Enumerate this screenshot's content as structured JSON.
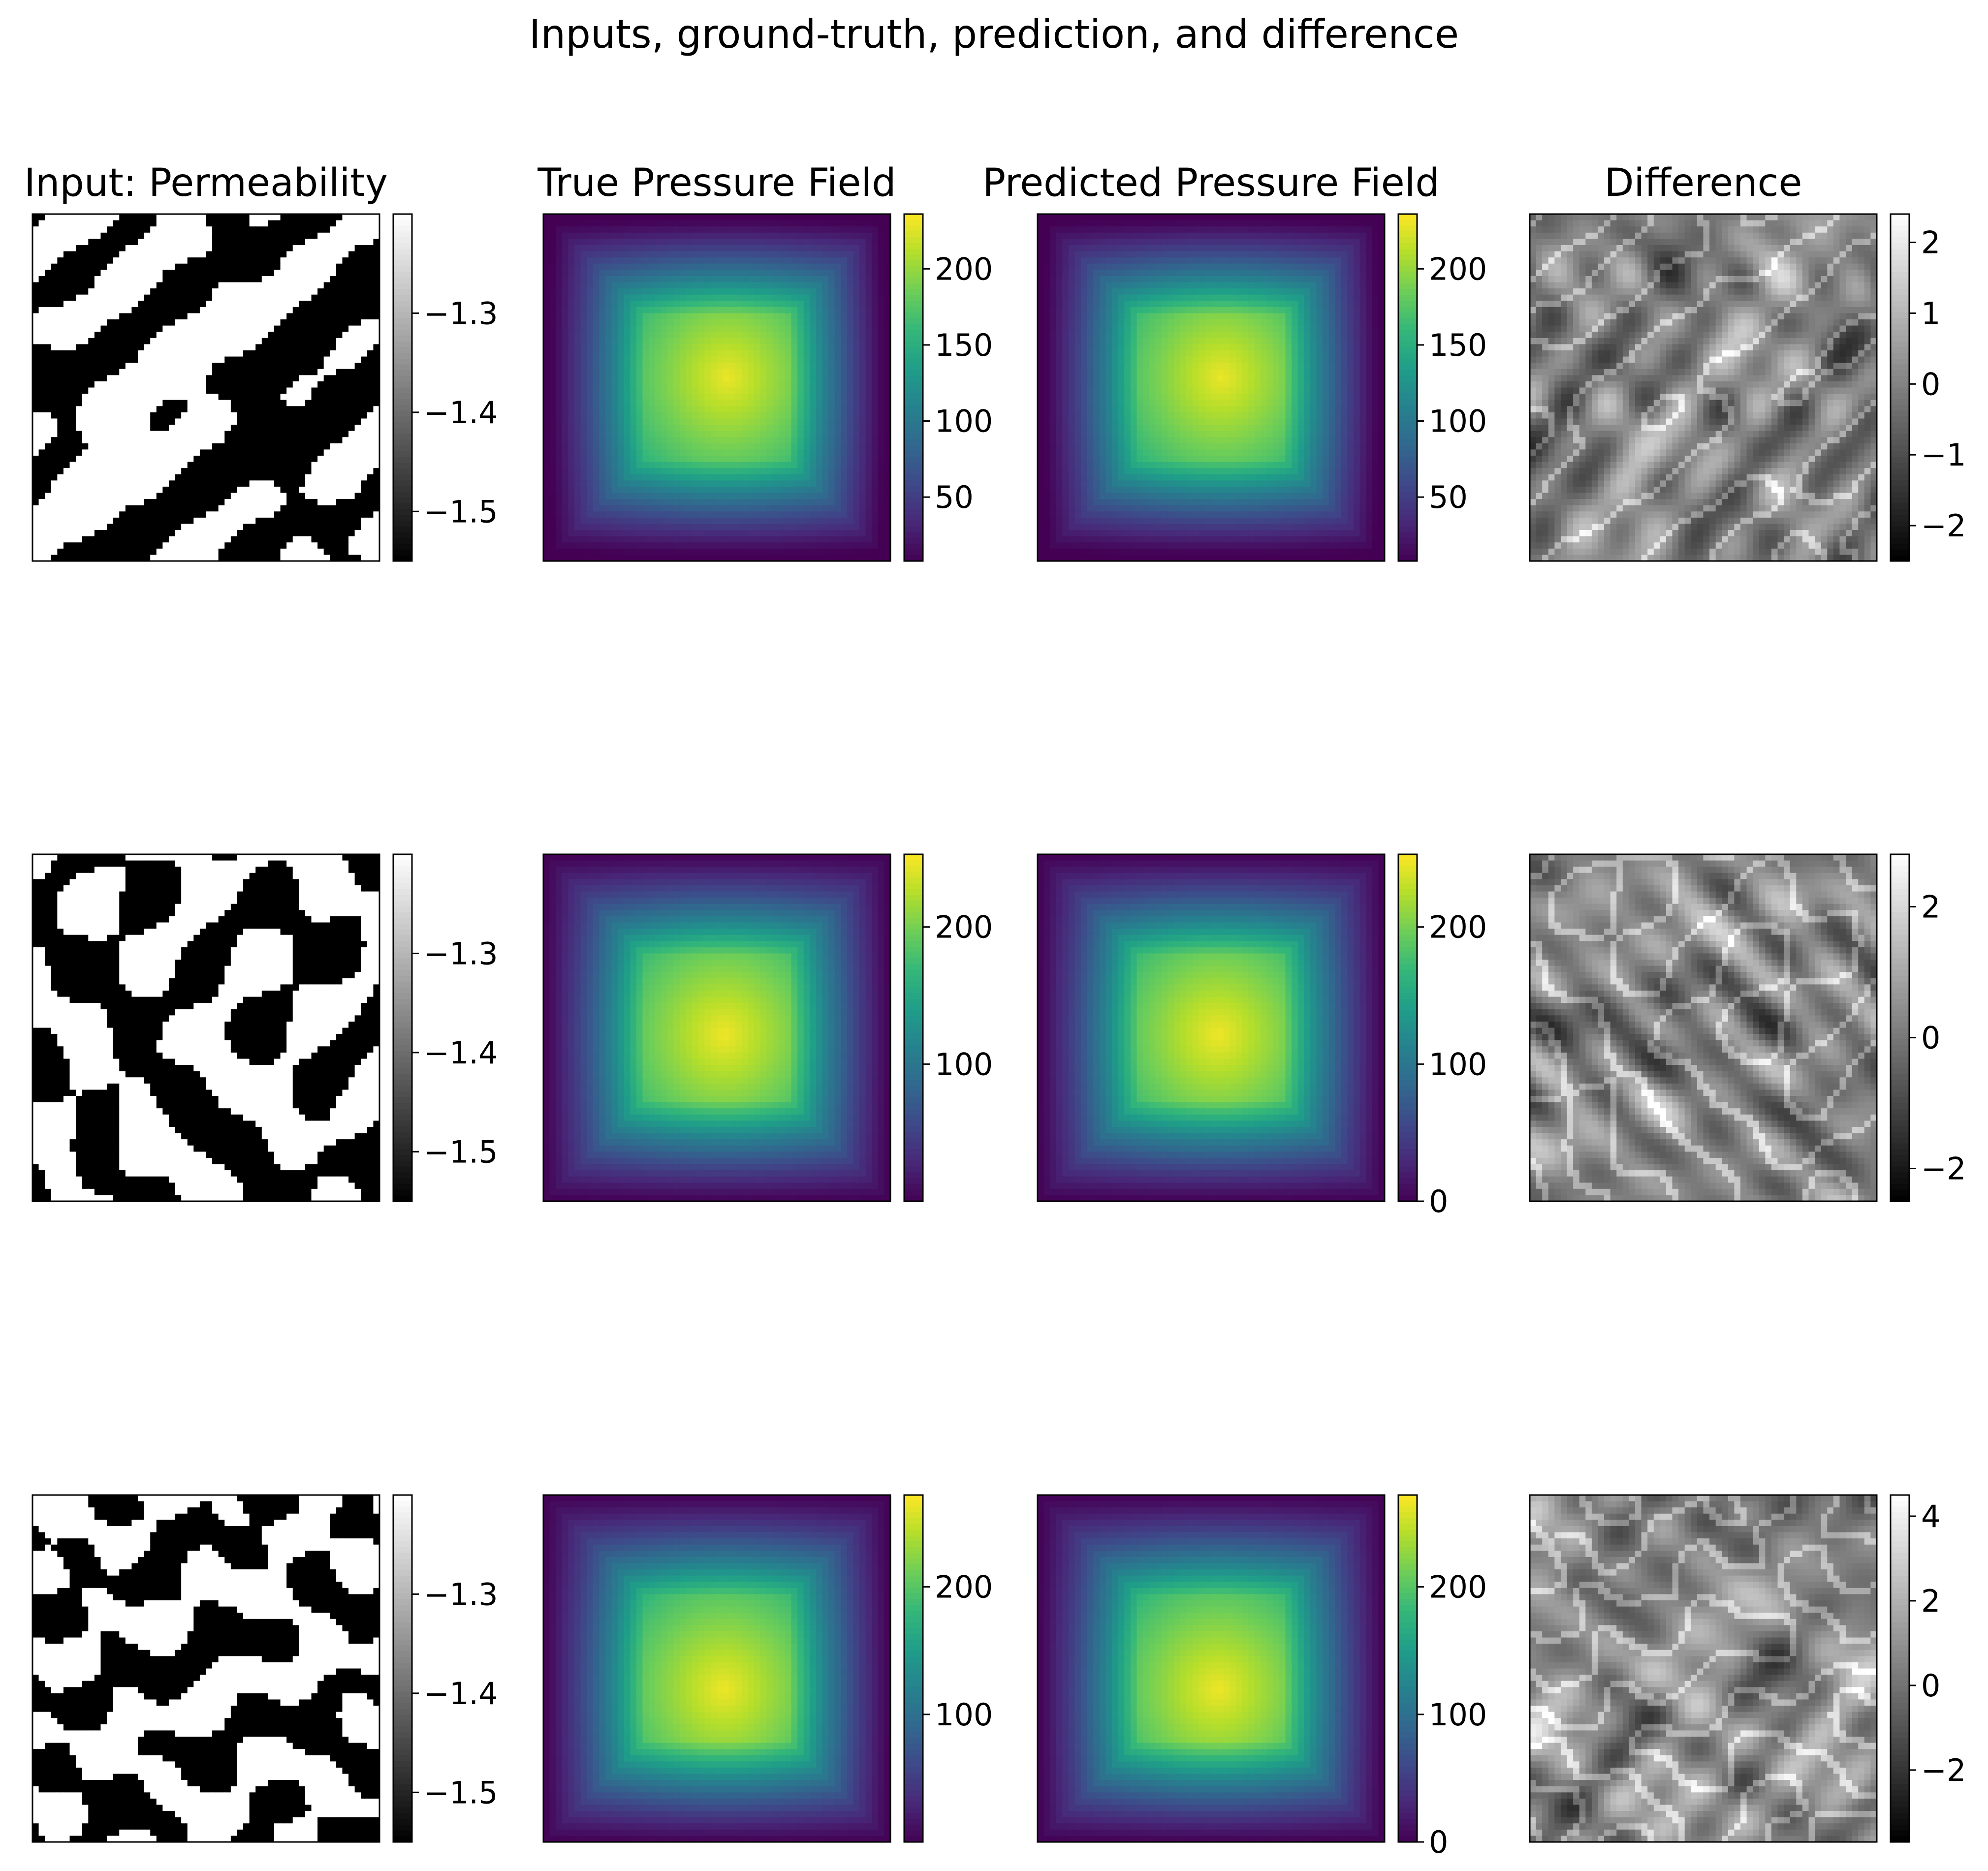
{
  "figure": {
    "title": "Inputs, ground-truth, prediction, and difference"
  },
  "chart_data": {
    "type": "heatmap",
    "layout": {
      "rows": 3,
      "cols": 4
    },
    "column_titles": [
      "Input: Permeability",
      "True Pressure Field",
      "Predicted Pressure Field",
      "Difference"
    ],
    "colormaps": {
      "permeability": "gray",
      "pressure": "viridis",
      "difference": "gray"
    },
    "axes": {
      "x_ticks": "off",
      "y_ticks": "off"
    },
    "rows": [
      {
        "permeability": {
          "vmin": -1.55,
          "vmax": -1.2,
          "ticks": [
            -1.3,
            -1.4,
            -1.5
          ],
          "tick_labels": [
            "−1.3",
            "−1.4",
            "−1.5"
          ],
          "blob_seed": 11
        },
        "true_pressure": {
          "vmin": 8,
          "vmax": 236,
          "peak": 230,
          "center": [
            0.53,
            0.47
          ],
          "ticks": [
            50,
            100,
            150,
            200
          ],
          "tick_labels": [
            "50",
            "100",
            "150",
            "200"
          ]
        },
        "predicted_pressure": {
          "vmin": 8,
          "vmax": 236,
          "peak": 230,
          "center": [
            0.53,
            0.47
          ],
          "ticks": [
            50,
            100,
            150,
            200
          ],
          "tick_labels": [
            "50",
            "100",
            "150",
            "200"
          ]
        },
        "difference": {
          "vmin": -2.5,
          "vmax": 2.4,
          "ticks": [
            2,
            1,
            0,
            -1,
            -2
          ],
          "tick_labels": [
            "2",
            "1",
            "0",
            "−1",
            "−2"
          ]
        }
      },
      {
        "permeability": {
          "vmin": -1.55,
          "vmax": -1.2,
          "ticks": [
            -1.3,
            -1.4,
            -1.5
          ],
          "tick_labels": [
            "−1.3",
            "−1.4",
            "−1.5"
          ],
          "blob_seed": 27
        },
        "true_pressure": {
          "vmin": 0,
          "vmax": 253,
          "peak": 248,
          "center": [
            0.52,
            0.52
          ],
          "ticks": [
            100,
            200
          ],
          "tick_labels": [
            "100",
            "200"
          ]
        },
        "predicted_pressure": {
          "vmin": 0,
          "vmax": 253,
          "peak": 248,
          "center": [
            0.52,
            0.52
          ],
          "ticks": [
            0,
            100,
            200
          ],
          "tick_labels": [
            "0",
            "100",
            "200"
          ]
        },
        "difference": {
          "vmin": -2.5,
          "vmax": 2.8,
          "ticks": [
            2,
            0,
            -2
          ],
          "tick_labels": [
            "2",
            "0",
            "−2"
          ]
        }
      },
      {
        "permeability": {
          "vmin": -1.55,
          "vmax": -1.2,
          "ticks": [
            -1.3,
            -1.4,
            -1.5
          ],
          "tick_labels": [
            "−1.3",
            "−1.4",
            "−1.5"
          ],
          "blob_seed": 43
        },
        "true_pressure": {
          "vmin": 0,
          "vmax": 272,
          "peak": 266,
          "center": [
            0.52,
            0.56
          ],
          "ticks": [
            100,
            200
          ],
          "tick_labels": [
            "100",
            "200"
          ]
        },
        "predicted_pressure": {
          "vmin": 0,
          "vmax": 272,
          "peak": 266,
          "center": [
            0.52,
            0.56
          ],
          "ticks": [
            0,
            100,
            200
          ],
          "tick_labels": [
            "0",
            "100",
            "200"
          ]
        },
        "difference": {
          "vmin": -3.7,
          "vmax": 4.5,
          "ticks": [
            4,
            2,
            0,
            -2
          ],
          "tick_labels": [
            "4",
            "2",
            "0",
            "−2"
          ]
        }
      }
    ]
  }
}
